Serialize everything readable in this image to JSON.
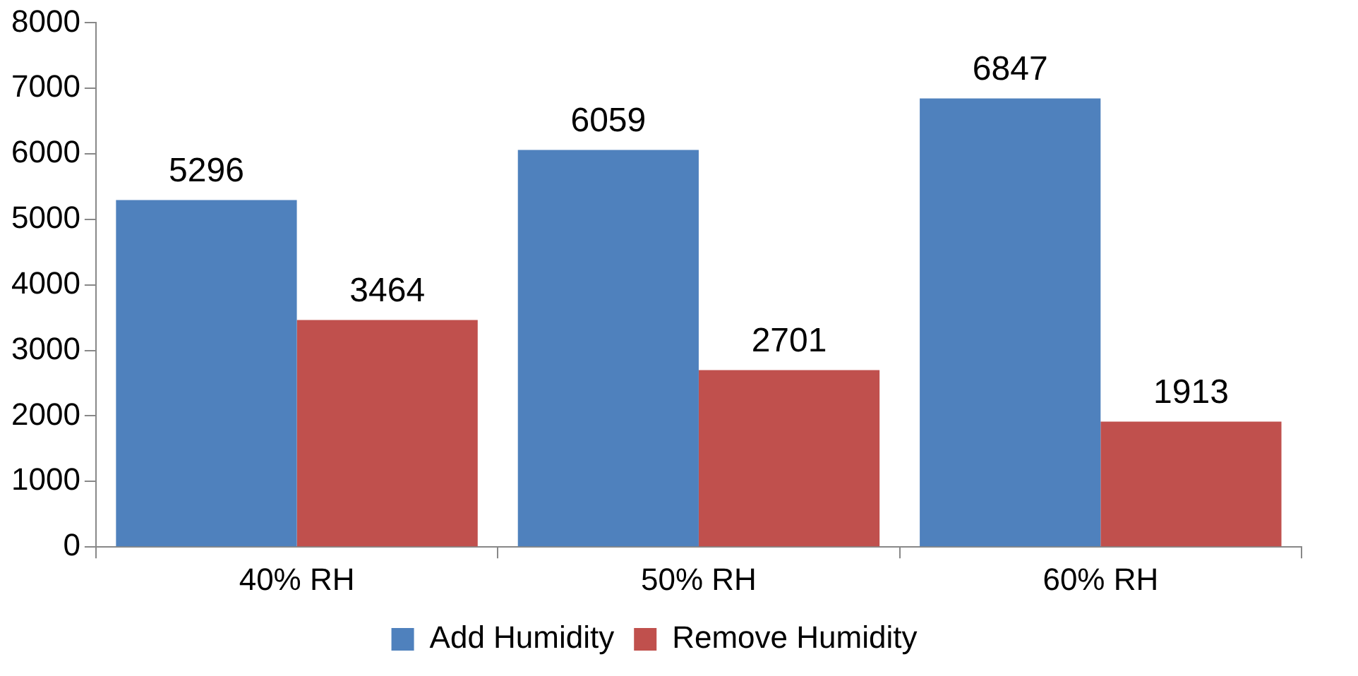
{
  "chart_data": {
    "type": "bar",
    "categories": [
      "40% RH",
      "50% RH",
      "60% RH"
    ],
    "series": [
      {
        "name": "Add Humidity",
        "color": "#4f81bd",
        "values": [
          5296,
          6059,
          6847
        ]
      },
      {
        "name": "Remove Humidity",
        "color": "#c0504d",
        "values": [
          3464,
          2701,
          1913
        ]
      }
    ],
    "ylim": [
      0,
      8000
    ],
    "yticks": [
      0,
      1000,
      2000,
      3000,
      4000,
      5000,
      6000,
      7000,
      8000
    ],
    "grid": false,
    "legend": "bottom",
    "data_labels": true
  }
}
